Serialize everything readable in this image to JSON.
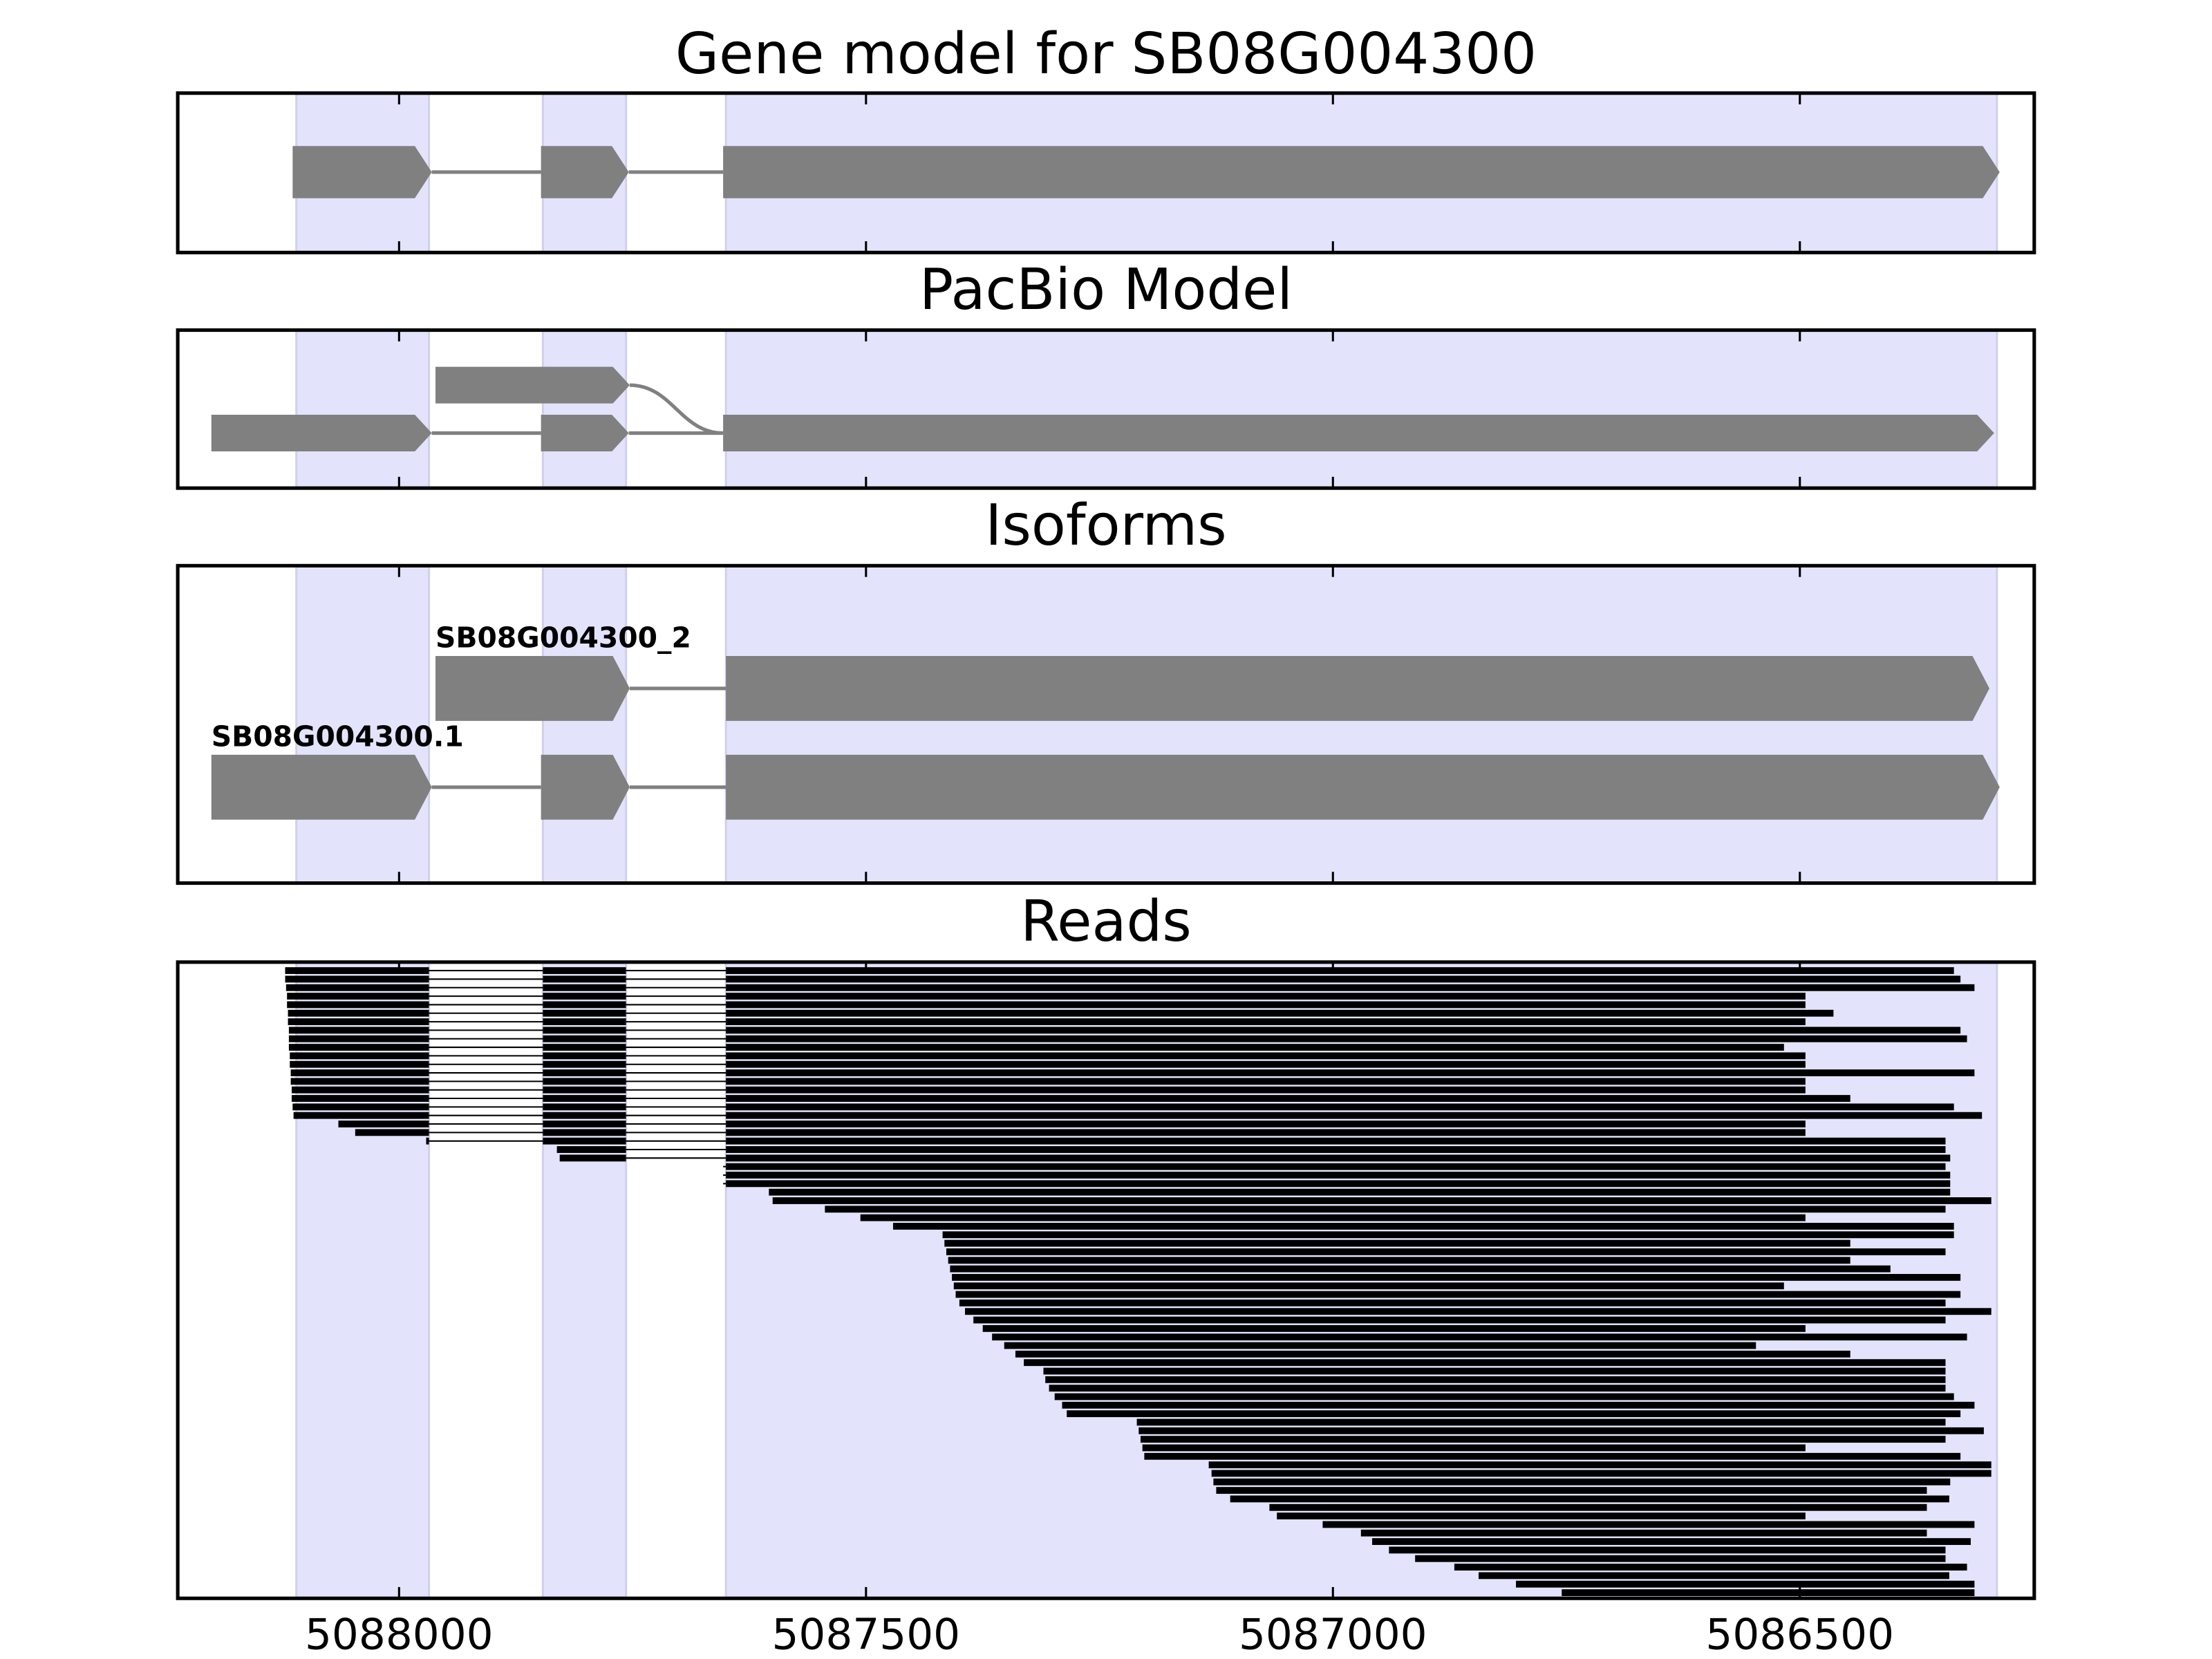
{
  "chart_data": [
    {
      "type": "gene-track",
      "title": "Gene model for SB08G004300",
      "tracks": [
        {
          "exons": [
            [
              5088114,
              5087965
            ],
            [
              5087848,
              5087754
            ],
            [
              5087653,
              5086286
            ]
          ]
        }
      ]
    },
    {
      "type": "gene-track",
      "title": "PacBio Model",
      "tracks": [
        {
          "exons": [
            [
              5087961,
              5087753
            ]
          ]
        },
        {
          "exons": [
            [
              5088201,
              5087965
            ],
            [
              5087848,
              5087754
            ],
            [
              5087653,
              5086292
            ]
          ]
        }
      ]
    },
    {
      "type": "gene-track",
      "title": "Isoforms",
      "tracks": [
        {
          "name": "SB08G004300_2",
          "exons": [
            [
              5087961,
              5087753
            ],
            [
              5087650,
              5086297
            ]
          ]
        },
        {
          "name": "SB08G004300.1",
          "exons": [
            [
              5088201,
              5087965
            ],
            [
              5087848,
              5087753
            ],
            [
              5087650,
              5086286
            ]
          ]
        }
      ]
    },
    {
      "type": "reads",
      "title": "Reads",
      "xlim": [
        5088237,
        5086249
      ],
      "xticks": [
        5088000,
        5087500,
        5087000,
        5086500
      ],
      "regions": [
        [
          5088110,
          5087968
        ],
        [
          5087846,
          5087757
        ],
        [
          5087650,
          5086289
        ]
      ],
      "region_color": "#e3e3fc",
      "reads": [
        [
          5088122,
          5086335
        ],
        [
          5088122,
          5086328
        ],
        [
          5088121,
          5086313
        ],
        [
          5088120,
          5086494
        ],
        [
          5088120,
          5086494
        ],
        [
          5088119,
          5086464
        ],
        [
          5088119,
          5086494
        ],
        [
          5088118,
          5086328
        ],
        [
          5088118,
          5086321
        ],
        [
          5088118,
          5086517
        ],
        [
          5088117,
          5086494
        ],
        [
          5088117,
          5086494
        ],
        [
          5088116,
          5086313
        ],
        [
          5088116,
          5086494
        ],
        [
          5088115,
          5086494
        ],
        [
          5088115,
          5086446
        ],
        [
          5088114,
          5086335
        ],
        [
          5088113,
          5086305
        ],
        [
          5088065,
          5086494
        ],
        [
          5088047,
          5086494
        ],
        [
          5087971,
          5086344
        ],
        [
          5087831,
          5086344
        ],
        [
          5087828,
          5086339
        ],
        [
          5087653,
          5086344
        ],
        [
          5087653,
          5086339
        ],
        [
          5087653,
          5086339
        ],
        [
          5087604,
          5086339
        ],
        [
          5087600,
          5086295
        ],
        [
          5087544,
          5086344
        ],
        [
          5087506,
          5086494
        ],
        [
          5087471,
          5086335
        ],
        [
          5087418,
          5086335
        ],
        [
          5087416,
          5086446
        ],
        [
          5087414,
          5086344
        ],
        [
          5087412,
          5086446
        ],
        [
          5087410,
          5086403
        ],
        [
          5087408,
          5086328
        ],
        [
          5087406,
          5086517
        ],
        [
          5087404,
          5086328
        ],
        [
          5087400,
          5086344
        ],
        [
          5087394,
          5086295
        ],
        [
          5087385,
          5086344
        ],
        [
          5087375,
          5086494
        ],
        [
          5087365,
          5086321
        ],
        [
          5087352,
          5086547
        ],
        [
          5087340,
          5086446
        ],
        [
          5087331,
          5086344
        ],
        [
          5087310,
          5086344
        ],
        [
          5087308,
          5086344
        ],
        [
          5087304,
          5086344
        ],
        [
          5087298,
          5086335
        ],
        [
          5087290,
          5086313
        ],
        [
          5087285,
          5086328
        ],
        [
          5087210,
          5086344
        ],
        [
          5087208,
          5086303
        ],
        [
          5087206,
          5086344
        ],
        [
          5087204,
          5086494
        ],
        [
          5087202,
          5086328
        ],
        [
          5087133,
          5086295
        ],
        [
          5087130,
          5086295
        ],
        [
          5087128,
          5086339
        ],
        [
          5087125,
          5086364
        ],
        [
          5087110,
          5086340
        ],
        [
          5087068,
          5086364
        ],
        [
          5087060,
          5086494
        ],
        [
          5087011,
          5086313
        ],
        [
          5086970,
          5086364
        ],
        [
          5086958,
          5086317
        ],
        [
          5086940,
          5086344
        ],
        [
          5086912,
          5086344
        ],
        [
          5086870,
          5086321
        ],
        [
          5086844,
          5086340
        ],
        [
          5086804,
          5086313
        ],
        [
          5086755,
          5086313
        ]
      ]
    }
  ]
}
